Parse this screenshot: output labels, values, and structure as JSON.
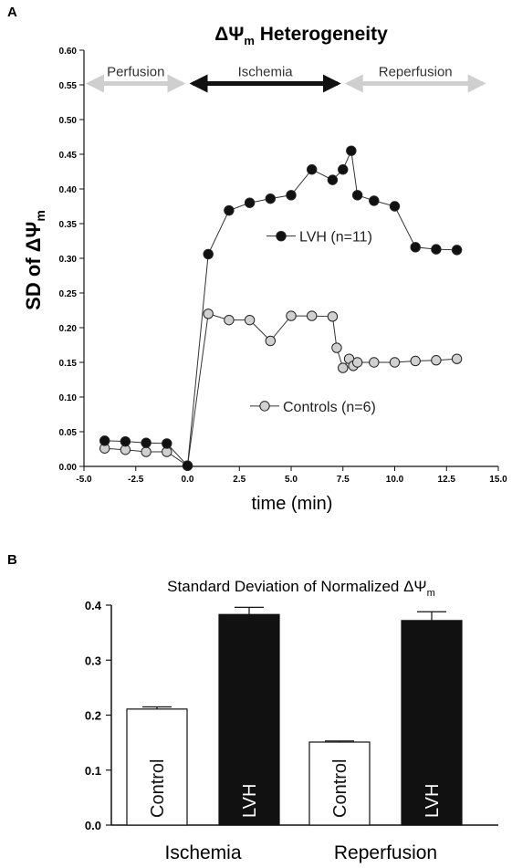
{
  "chart_data": [
    {
      "panel": "A",
      "type": "line",
      "title_prefix": "ΔΨ",
      "title_sub": "m",
      "title_suffix": " Heterogeneity",
      "xlabel": "time (min)",
      "ylabel_prefix": "SD of ΔΨ",
      "ylabel_sub": "m",
      "xlim": [
        -5,
        15
      ],
      "ylim": [
        0,
        0.6
      ],
      "xticks": [
        "-5.0",
        "-2.5",
        "0.0",
        "2.5",
        "5.0",
        "7.5",
        "10.0",
        "12.5",
        "15.0"
      ],
      "yticks": [
        "0.00",
        "0.05",
        "0.10",
        "0.15",
        "0.20",
        "0.25",
        "0.30",
        "0.35",
        "0.40",
        "0.45",
        "0.50",
        "0.55",
        "0.60"
      ],
      "phases": [
        {
          "label": "Perfusion",
          "x_start": -5,
          "x_end": 0,
          "color": "#cfcfcf"
        },
        {
          "label": "Ischemia",
          "x_start": 0,
          "x_end": 7.5,
          "color": "#111111"
        },
        {
          "label": "Reperfusion",
          "x_start": 7.5,
          "x_end": 14.5,
          "color": "#cfcfcf"
        }
      ],
      "series": [
        {
          "name": "LVH (n=11)",
          "color": "#111111",
          "x": [
            -4,
            -3,
            -2,
            -1,
            0,
            1,
            2,
            3,
            4,
            5,
            6,
            7,
            7.5,
            7.9,
            8.2,
            9,
            10,
            11,
            12,
            13
          ],
          "y": [
            0.037,
            0.036,
            0.034,
            0.033,
            0.001,
            0.306,
            0.369,
            0.38,
            0.386,
            0.391,
            0.428,
            0.413,
            0.428,
            0.455,
            0.391,
            0.383,
            0.375,
            0.316,
            0.313,
            0.312
          ]
        },
        {
          "name": "Controls (n=6)",
          "color": "#d0d0d0",
          "x": [
            -4,
            -3,
            -2,
            -1,
            0,
            1,
            2,
            3,
            4,
            5,
            6,
            7,
            7.2,
            7.5,
            7.8,
            8.0,
            8.2,
            9,
            10,
            11,
            12,
            13
          ],
          "y": [
            0.026,
            0.024,
            0.021,
            0.021,
            0.001,
            0.22,
            0.211,
            0.211,
            0.181,
            0.217,
            0.217,
            0.216,
            0.171,
            0.142,
            0.155,
            0.145,
            0.15,
            0.15,
            0.15,
            0.152,
            0.153,
            0.155
          ]
        }
      ]
    },
    {
      "panel": "B",
      "type": "bar",
      "title_prefix": "Standard Deviation of Normalized ΔΨ",
      "title_sub": "m",
      "groups": [
        "Ischemia",
        "Reperfusion"
      ],
      "ylim": [
        0,
        0.4
      ],
      "yticks": [
        "0.0",
        "0.1",
        "0.2",
        "0.3",
        "0.4"
      ],
      "bars": [
        {
          "group": "Ischemia",
          "label": "Control",
          "value": 0.211,
          "error": 0.004,
          "fill": "#ffffff"
        },
        {
          "group": "Ischemia",
          "label": "LVH",
          "value": 0.383,
          "error": 0.013,
          "fill": "#111111"
        },
        {
          "group": "Reperfusion",
          "label": "Control",
          "value": 0.151,
          "error": 0.002,
          "fill": "#ffffff"
        },
        {
          "group": "Reperfusion",
          "label": "LVH",
          "value": 0.372,
          "error": 0.016,
          "fill": "#111111"
        }
      ]
    }
  ]
}
